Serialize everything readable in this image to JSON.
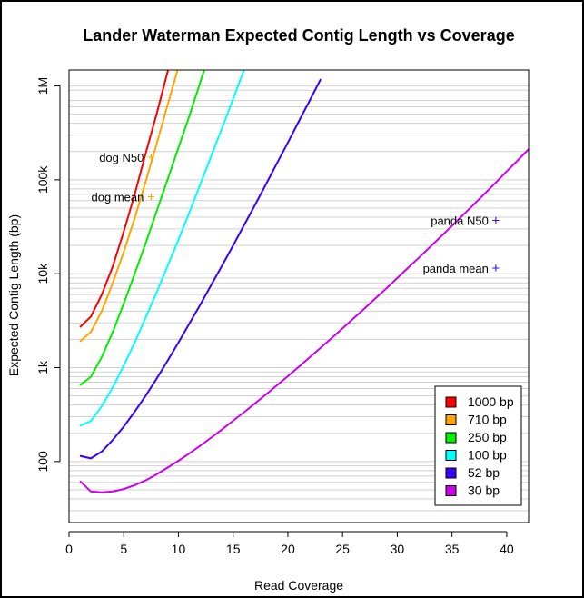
{
  "chart_data": {
    "type": "line",
    "title": "Lander Waterman Expected Contig Length vs Coverage",
    "xlabel": "Read Coverage",
    "ylabel": "Expected Contig Length (bp)",
    "xlim": [
      0,
      42
    ],
    "ylim_log10": [
      1.35,
      6.17
    ],
    "y_scale": "log",
    "grid": "horizontal",
    "x_ticks": [
      0,
      5,
      10,
      15,
      20,
      25,
      30,
      35,
      40
    ],
    "y_ticks": [
      {
        "value": 100,
        "label": "100"
      },
      {
        "value": 1000,
        "label": "1k"
      },
      {
        "value": 10000,
        "label": "10k"
      },
      {
        "value": 100000,
        "label": "100k"
      },
      {
        "value": 1000000,
        "label": "1M"
      }
    ],
    "legend_position": "bottom-right",
    "series": [
      {
        "name": "1000 bp",
        "color": "#ff0000",
        "points": [
          [
            1,
            2700
          ],
          [
            2,
            3500
          ],
          [
            3,
            6000
          ],
          [
            4,
            12000
          ],
          [
            5,
            28000
          ],
          [
            6,
            70000
          ],
          [
            7,
            190000
          ],
          [
            8,
            500000
          ],
          [
            9,
            1400000
          ],
          [
            10,
            3500000
          ]
        ]
      },
      {
        "name": "710 bp",
        "color": "#ffa500",
        "points": [
          [
            1,
            1900
          ],
          [
            2,
            2400
          ],
          [
            3,
            4000
          ],
          [
            4,
            8000
          ],
          [
            5,
            17000
          ],
          [
            6,
            39000
          ],
          [
            7,
            95000
          ],
          [
            8,
            240000
          ],
          [
            9,
            620000
          ],
          [
            10,
            1600000
          ]
        ]
      },
      {
        "name": "250 bp",
        "color": "#00ee00",
        "points": [
          [
            1,
            650
          ],
          [
            2,
            800
          ],
          [
            3,
            1300
          ],
          [
            4,
            2400
          ],
          [
            5,
            4800
          ],
          [
            6,
            10000
          ],
          [
            7,
            21000
          ],
          [
            8,
            46000
          ],
          [
            9,
            100000
          ],
          [
            10,
            220000
          ],
          [
            11,
            480000
          ],
          [
            12,
            1100000
          ],
          [
            13,
            2500000
          ]
        ]
      },
      {
        "name": "100 bp",
        "color": "#00ffff",
        "points": [
          [
            1,
            240
          ],
          [
            2,
            270
          ],
          [
            3,
            390
          ],
          [
            4,
            620
          ],
          [
            5,
            1050
          ],
          [
            6,
            1850
          ],
          [
            7,
            3400
          ],
          [
            8,
            6300
          ],
          [
            9,
            12000
          ],
          [
            10,
            23000
          ],
          [
            11,
            45000
          ],
          [
            12,
            90000
          ],
          [
            13,
            180000
          ],
          [
            14,
            360000
          ],
          [
            15,
            730000
          ],
          [
            16,
            1500000
          ]
        ]
      },
      {
        "name": "52 bp",
        "color": "#3a00ff",
        "points": [
          [
            1,
            115
          ],
          [
            2,
            108
          ],
          [
            3,
            128
          ],
          [
            4,
            170
          ],
          [
            5,
            235
          ],
          [
            6,
            340
          ],
          [
            7,
            500
          ],
          [
            8,
            760
          ],
          [
            9,
            1180
          ],
          [
            10,
            1850
          ],
          [
            11,
            2950
          ],
          [
            12,
            4700
          ],
          [
            13,
            7600
          ],
          [
            14,
            12300
          ],
          [
            15,
            20000
          ],
          [
            16,
            33000
          ],
          [
            17,
            54000
          ],
          [
            18,
            90000
          ],
          [
            19,
            150000
          ],
          [
            20,
            250000
          ],
          [
            21,
            420000
          ],
          [
            22,
            700000
          ],
          [
            23,
            1180000
          ]
        ]
      },
      {
        "name": "30 bp",
        "color": "#cc00ee",
        "points": [
          [
            1,
            62
          ],
          [
            2,
            48
          ],
          [
            3,
            47
          ],
          [
            4,
            48
          ],
          [
            5,
            51
          ],
          [
            6,
            56
          ],
          [
            7,
            63
          ],
          [
            8,
            73
          ],
          [
            9,
            86
          ],
          [
            10,
            102
          ],
          [
            11,
            122
          ],
          [
            12,
            148
          ],
          [
            13,
            180
          ],
          [
            14,
            221
          ],
          [
            15,
            272
          ],
          [
            16,
            336
          ],
          [
            17,
            417
          ],
          [
            18,
            519
          ],
          [
            19,
            648
          ],
          [
            20,
            812
          ],
          [
            21,
            1020
          ],
          [
            22,
            1290
          ],
          [
            23,
            1630
          ],
          [
            24,
            2060
          ],
          [
            25,
            2620
          ],
          [
            26,
            3340
          ],
          [
            27,
            4260
          ],
          [
            28,
            5450
          ],
          [
            29,
            6990
          ],
          [
            30,
            8990
          ],
          [
            31,
            11600
          ],
          [
            32,
            14900
          ],
          [
            33,
            19300
          ],
          [
            34,
            25000
          ],
          [
            35,
            32400
          ],
          [
            36,
            42100
          ],
          [
            37,
            54900
          ],
          [
            38,
            71600
          ],
          [
            39,
            93700
          ],
          [
            40,
            123000
          ],
          [
            41,
            161000
          ],
          [
            42,
            212000
          ]
        ]
      }
    ],
    "annotations": [
      {
        "label": "dog N50",
        "x": 7.5,
        "y": 175000,
        "color": "#ffa500"
      },
      {
        "label": "dog mean",
        "x": 7.5,
        "y": 66000,
        "color": "#ffa500"
      },
      {
        "label": "panda N50",
        "x": 39,
        "y": 37000,
        "color": "#3a00ff"
      },
      {
        "label": "panda mean",
        "x": 39,
        "y": 11500,
        "color": "#3a00ff"
      }
    ]
  }
}
